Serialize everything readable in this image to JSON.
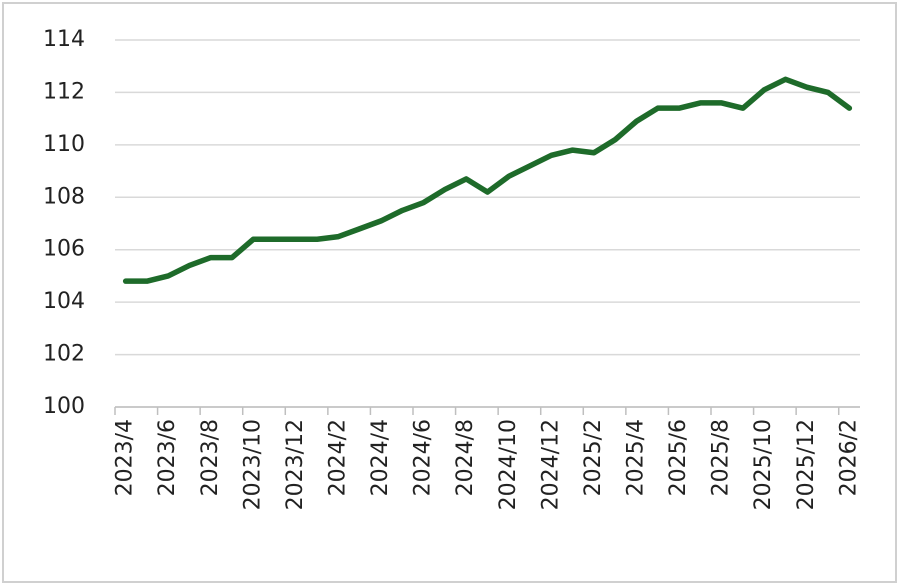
{
  "chart_data": {
    "type": "line",
    "categories": [
      "2023/4",
      null,
      "2023/6",
      null,
      "2023/8",
      null,
      "2023/10",
      null,
      "2023/12",
      null,
      "2024/2",
      null,
      "2024/4",
      null,
      "2024/6",
      null,
      "2024/8",
      null,
      "2024/10",
      null,
      "2024/12",
      null,
      "2025/2",
      null,
      "2025/4",
      null,
      "2025/6",
      null,
      "2025/8",
      null,
      "2025/10",
      null,
      "2025/12",
      null,
      "2026/2"
    ],
    "series": [
      {
        "color": "#1e6b2a",
        "values": [
          104.8,
          104.8,
          105.0,
          105.4,
          105.7,
          105.7,
          106.4,
          106.4,
          106.4,
          106.4,
          106.5,
          106.8,
          107.1,
          107.5,
          107.8,
          108.3,
          108.7,
          108.2,
          108.8,
          109.2,
          109.6,
          109.8,
          109.7,
          110.2,
          110.9,
          111.4,
          111.4,
          111.6,
          111.6,
          111.4,
          112.1,
          112.5,
          112.2,
          112.0,
          111.4
        ]
      }
    ],
    "ylim": [
      100,
      114
    ],
    "yticks": [
      100,
      102,
      104,
      106,
      108,
      110,
      112,
      114
    ],
    "grid": true
  }
}
